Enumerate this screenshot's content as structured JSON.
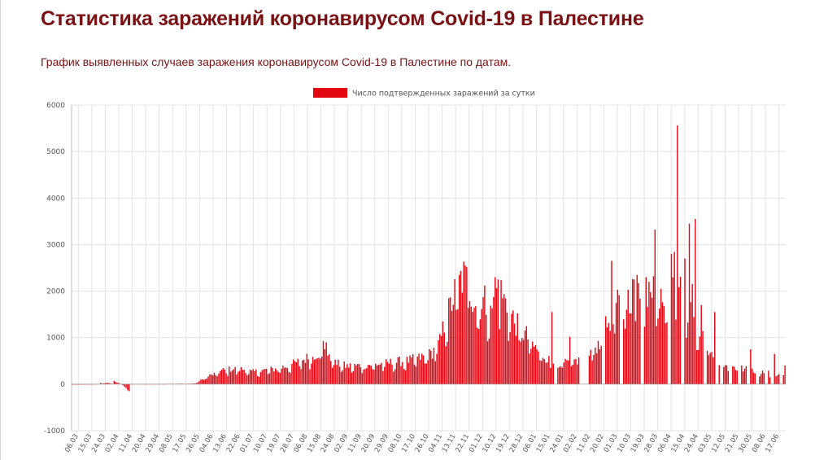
{
  "header": {
    "title": "Статистика заражений коронавирусом Covid-19 в Палестине",
    "subtitle": "График выявленных случаев заражения коронавирусом Covid-19 в Палестине по датам."
  },
  "colors": {
    "title": "#7a1114",
    "bars": "#e30613",
    "grid": "#e3e3e3",
    "axis_text": "#555555"
  },
  "chart_data": {
    "type": "bar",
    "legend": {
      "label": "Число подтвержденных заражений за сутки",
      "position": "top-center"
    },
    "grid": true,
    "ylim": [
      -1000,
      6000
    ],
    "yticks": [
      6000,
      5000,
      4000,
      3000,
      2000,
      1000,
      0,
      -1000
    ],
    "xticks": [
      "06.03",
      "15.03",
      "24.03",
      "02.04",
      "11.04",
      "20.04",
      "29.04",
      "08.05",
      "17.05",
      "26.05",
      "04.06",
      "13.06",
      "22.06",
      "01.07",
      "10.07",
      "19.07",
      "28.07",
      "06.08",
      "15.08",
      "24.08",
      "02.09",
      "11.09",
      "20.09",
      "29.09",
      "08.10",
      "17.10",
      "26.10",
      "04.11",
      "13.11",
      "22.11",
      "01.12",
      "10.12",
      "19.12",
      "28.12",
      "06.01",
      "15.01",
      "24.01",
      "02.02",
      "11.02",
      "20.02",
      "01.03",
      "10.03",
      "19.03",
      "28.03",
      "06.04",
      "15.04",
      "24.04",
      "03.05",
      "12.05",
      "21.05",
      "30.05",
      "08.06",
      "17.06"
    ],
    "anchors": [
      [
        0,
        0
      ],
      [
        18,
        5
      ],
      [
        24,
        30
      ],
      [
        27,
        10
      ],
      [
        28,
        60
      ],
      [
        32,
        10
      ],
      [
        38,
        -130
      ],
      [
        39,
        5
      ],
      [
        45,
        5
      ],
      [
        60,
        5
      ],
      [
        66,
        10
      ],
      [
        76,
        10
      ],
      [
        80,
        10
      ],
      [
        83,
        30
      ],
      [
        87,
        100
      ],
      [
        90,
        160
      ],
      [
        96,
        230
      ],
      [
        100,
        290
      ],
      [
        107,
        330
      ],
      [
        115,
        320
      ],
      [
        120,
        260
      ],
      [
        128,
        300
      ],
      [
        136,
        330
      ],
      [
        144,
        390
      ],
      [
        152,
        490
      ],
      [
        160,
        600
      ],
      [
        166,
        700
      ],
      [
        168,
        850
      ],
      [
        170,
        750
      ],
      [
        176,
        450
      ],
      [
        184,
        390
      ],
      [
        192,
        400
      ],
      [
        200,
        420
      ],
      [
        208,
        440
      ],
      [
        216,
        480
      ],
      [
        224,
        500
      ],
      [
        232,
        560
      ],
      [
        240,
        650
      ],
      [
        246,
        900
      ],
      [
        250,
        1400
      ],
      [
        253,
        1650
      ],
      [
        256,
        1950
      ],
      [
        259,
        2200
      ],
      [
        262,
        2300
      ],
      [
        265,
        2100
      ],
      [
        268,
        1900
      ],
      [
        272,
        1700
      ],
      [
        276,
        1800
      ],
      [
        280,
        1500
      ],
      [
        283,
        1900
      ],
      [
        285,
        2100
      ],
      [
        288,
        1900
      ],
      [
        292,
        1600
      ],
      [
        296,
        1350
      ],
      [
        300,
        1150
      ],
      [
        304,
        1050
      ],
      [
        308,
        850
      ],
      [
        312,
        700
      ],
      [
        316,
        600
      ],
      [
        320,
        500
      ],
      [
        324,
        450
      ],
      [
        330,
        450
      ],
      [
        336,
        500
      ],
      [
        342,
        520
      ],
      [
        346,
        650
      ],
      [
        350,
        800
      ],
      [
        353,
        900
      ],
      [
        357,
        1200
      ],
      [
        361,
        1500
      ],
      [
        364,
        1650
      ],
      [
        368,
        1750
      ],
      [
        372,
        1850
      ],
      [
        376,
        2000
      ],
      [
        380,
        2050
      ],
      [
        384,
        2100
      ],
      [
        387,
        1900
      ],
      [
        390,
        1600
      ],
      [
        393,
        1800
      ],
      [
        396,
        2050
      ],
      [
        398,
        2300
      ],
      [
        401,
        2600
      ],
      [
        404,
        2400
      ],
      [
        407,
        1950
      ],
      [
        410,
        1800
      ],
      [
        413,
        1700
      ],
      [
        416,
        1500
      ],
      [
        419,
        1250
      ],
      [
        422,
        1050
      ],
      [
        425,
        900
      ],
      [
        428,
        700
      ],
      [
        431,
        560
      ],
      [
        434,
        500
      ],
      [
        438,
        440
      ],
      [
        442,
        400
      ],
      [
        446,
        350
      ],
      [
        450,
        330
      ],
      [
        454,
        300
      ],
      [
        458,
        280
      ],
      [
        462,
        260
      ],
      [
        466,
        240
      ],
      [
        470,
        210
      ],
      [
        474,
        200
      ],
      [
        477,
        190
      ]
    ],
    "spikes": [
      [
        19,
        30
      ],
      [
        38,
        -150
      ],
      [
        170,
        900
      ],
      [
        259,
        2350
      ],
      [
        264,
        2520
      ],
      [
        283,
        2300
      ],
      [
        285,
        2250
      ],
      [
        321,
        1550
      ],
      [
        333,
        1020
      ],
      [
        361,
        2650
      ],
      [
        376,
        2250
      ],
      [
        384,
        2300
      ],
      [
        386,
        2200
      ],
      [
        389,
        2320
      ],
      [
        390,
        3320
      ],
      [
        394,
        2050
      ],
      [
        401,
        2800
      ],
      [
        405,
        5560
      ],
      [
        410,
        2700
      ],
      [
        413,
        3450
      ],
      [
        415,
        2150
      ],
      [
        417,
        3550
      ],
      [
        421,
        1700
      ],
      [
        430,
        1550
      ],
      [
        454,
        750
      ],
      [
        470,
        650
      ],
      [
        477,
        400
      ]
    ],
    "gaps": [
      [
        323,
        324
      ],
      [
        340,
        345
      ],
      [
        355,
        356
      ],
      [
        367,
        368
      ],
      [
        381,
        382
      ],
      [
        399,
        400
      ],
      [
        408,
        409
      ],
      [
        423,
        424
      ],
      [
        431,
        432
      ],
      [
        434,
        435
      ],
      [
        440,
        441
      ],
      [
        446,
        447
      ],
      [
        452,
        453
      ],
      [
        458,
        459
      ],
      [
        464,
        465
      ],
      [
        468,
        469
      ],
      [
        474,
        475
      ]
    ],
    "num_days": 478
  }
}
